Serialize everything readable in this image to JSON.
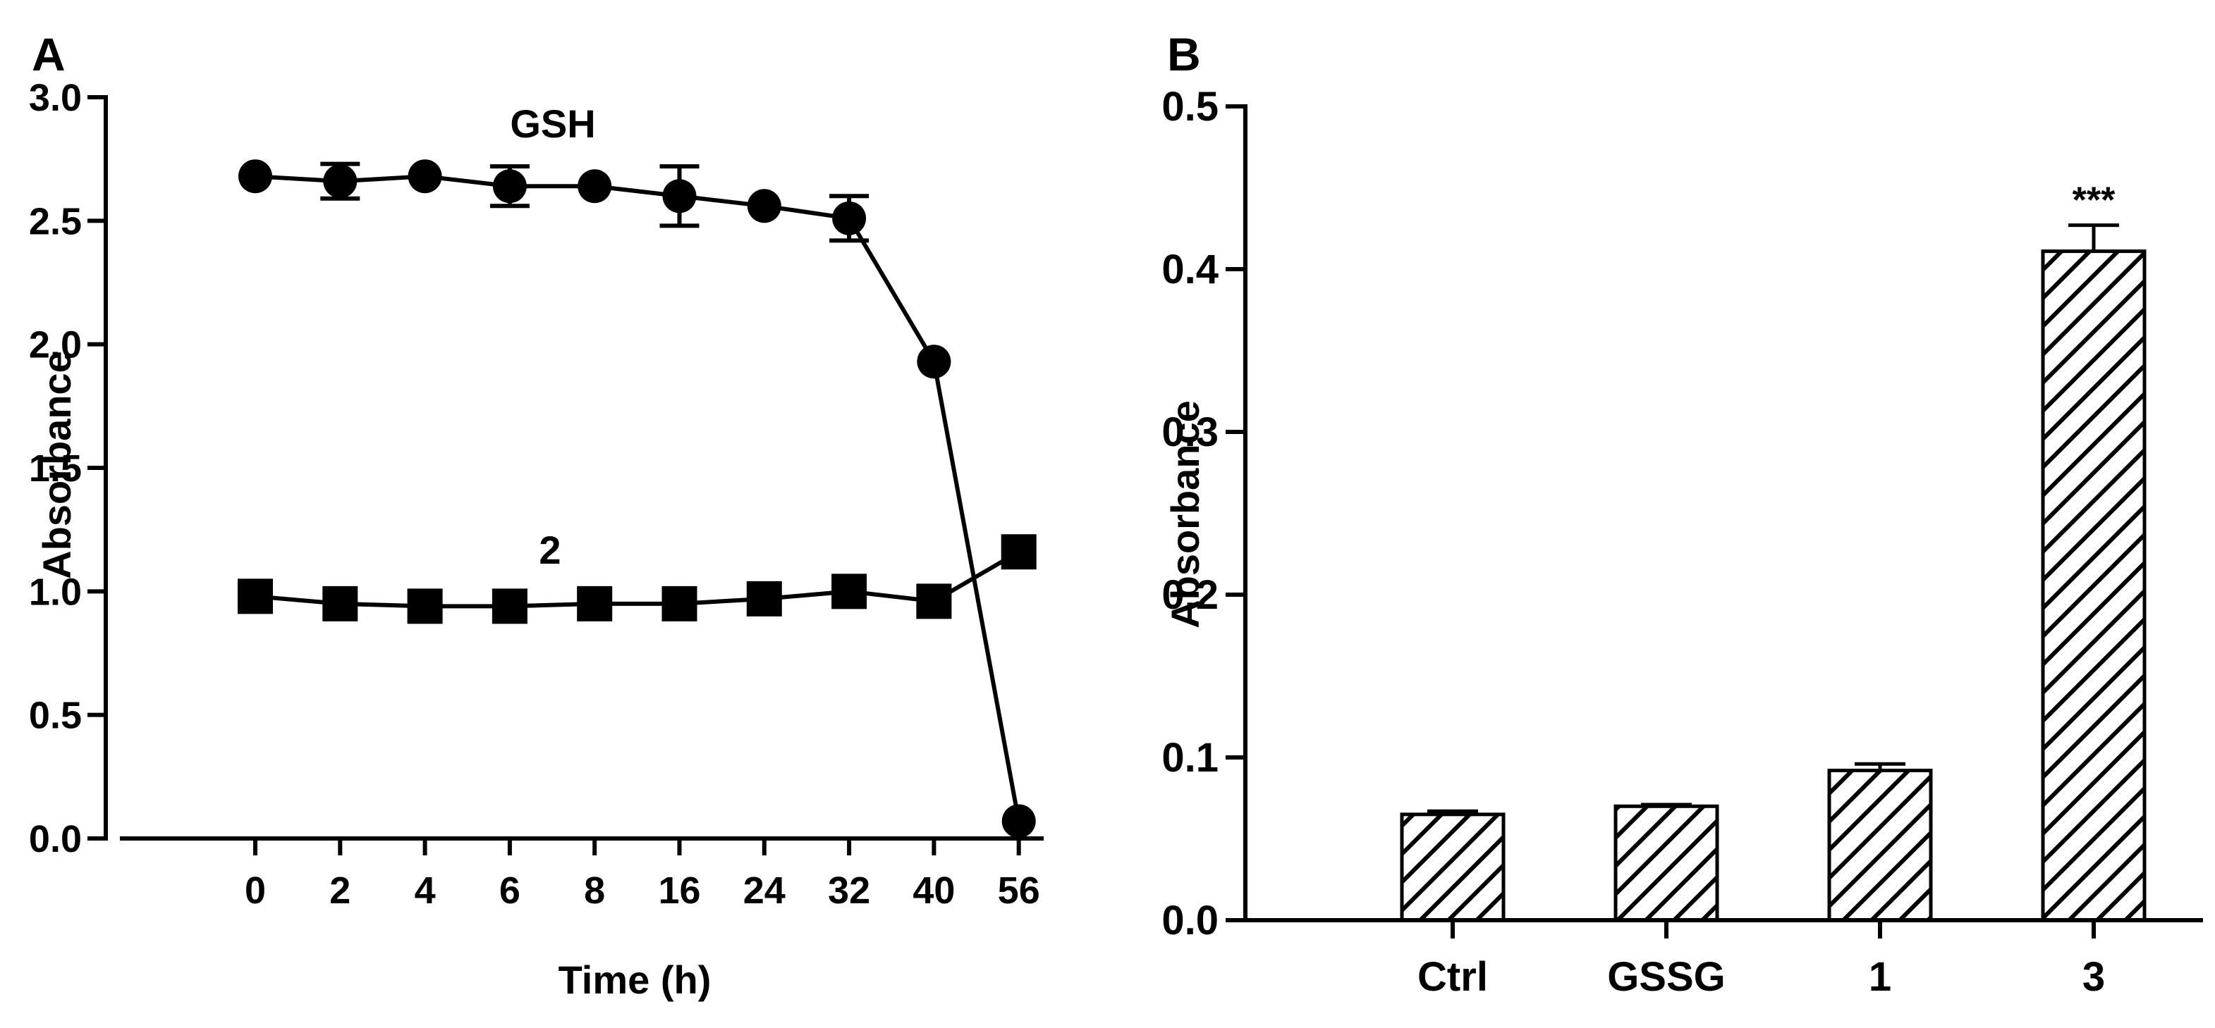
{
  "panels": [
    {
      "letter": "A",
      "chart_data": {
        "type": "line",
        "title": "",
        "xlabel": "Time (h)",
        "ylabel": "Absorbance",
        "categories": [
          "0",
          "2",
          "4",
          "6",
          "8",
          "16",
          "24",
          "32",
          "40",
          "56"
        ],
        "ylim": [
          0,
          3.0
        ],
        "yticks": [
          "0.0",
          "0.5",
          "1.0",
          "1.5",
          "2.0",
          "2.5",
          "3.0"
        ],
        "series": [
          {
            "name": "GSH",
            "marker": "circle",
            "values": [
              2.68,
              2.66,
              2.68,
              2.64,
              2.64,
              2.6,
              2.56,
              2.51,
              1.93,
              0.07
            ],
            "errors": [
              0.0,
              0.07,
              0.0,
              0.08,
              0.0,
              0.12,
              0.0,
              0.09,
              0.0,
              0.0
            ]
          },
          {
            "name": "2",
            "marker": "square",
            "values": [
              0.98,
              0.95,
              0.94,
              0.94,
              0.95,
              0.95,
              0.97,
              1.0,
              0.96,
              1.16
            ],
            "errors": [
              0,
              0,
              0,
              0,
              0,
              0,
              0,
              0,
              0,
              0
            ]
          }
        ],
        "annotations": [
          "GSH",
          "2"
        ]
      }
    },
    {
      "letter": "B",
      "chart_data": {
        "type": "bar",
        "title": "",
        "xlabel": "",
        "ylabel": "Absorbance",
        "categories": [
          "Ctrl",
          "GSSG",
          "1",
          "3"
        ],
        "values": [
          0.065,
          0.07,
          0.092,
          0.411
        ],
        "errors": [
          0.002,
          0.001,
          0.004,
          0.016
        ],
        "ylim": [
          0,
          0.5
        ],
        "yticks": [
          "0.0",
          "0.1",
          "0.2",
          "0.3",
          "0.4",
          "0.5"
        ],
        "fill": "diagonal-hatch",
        "annotations": [
          "",
          "",
          "",
          "***"
        ]
      }
    }
  ]
}
